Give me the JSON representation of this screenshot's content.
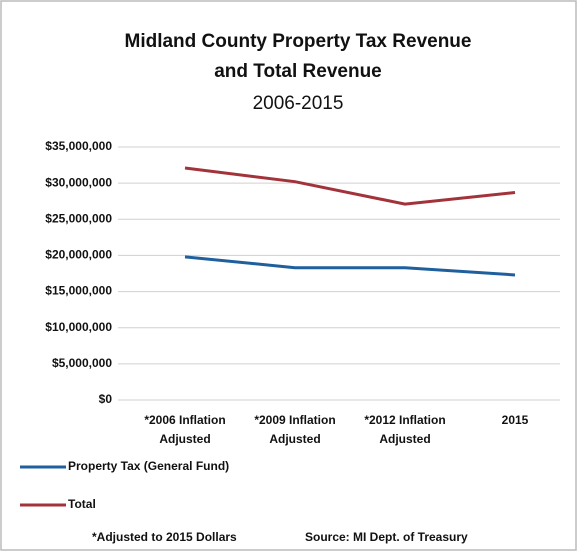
{
  "chart_data": {
    "type": "line",
    "title": "Midland County Property Tax Revenue\nand Total Revenue",
    "subtitle": "2006-2015",
    "categories": [
      "*2006 Inflation\nAdjusted",
      "*2009 Inflation\nAdjusted",
      "*2012 Inflation\nAdjusted",
      "2015"
    ],
    "series": [
      {
        "name": "Property Tax (General Fund)",
        "color": "#1f5f9e",
        "values": [
          19800000,
          18300000,
          18300000,
          17300000
        ]
      },
      {
        "name": "Total",
        "color": "#a3333a",
        "values": [
          32100000,
          30200000,
          27100000,
          28700000
        ]
      }
    ],
    "ylim": [
      0,
      35000000
    ],
    "yticks": [
      {
        "value": 0,
        "label": "$0"
      },
      {
        "value": 5000000,
        "label": "$5,000,000"
      },
      {
        "value": 10000000,
        "label": "$10,000,000"
      },
      {
        "value": 15000000,
        "label": "$15,000,000"
      },
      {
        "value": 20000000,
        "label": "$20,000,000"
      },
      {
        "value": 25000000,
        "label": "$25,000,000"
      },
      {
        "value": 30000000,
        "label": "$30,000,000"
      },
      {
        "value": 35000000,
        "label": "$35,000,000"
      }
    ],
    "grid": true,
    "legend": "bottom-left",
    "footnote": "*Adjusted to 2015 Dollars",
    "source": "Source: MI Dept. of Treasury"
  }
}
